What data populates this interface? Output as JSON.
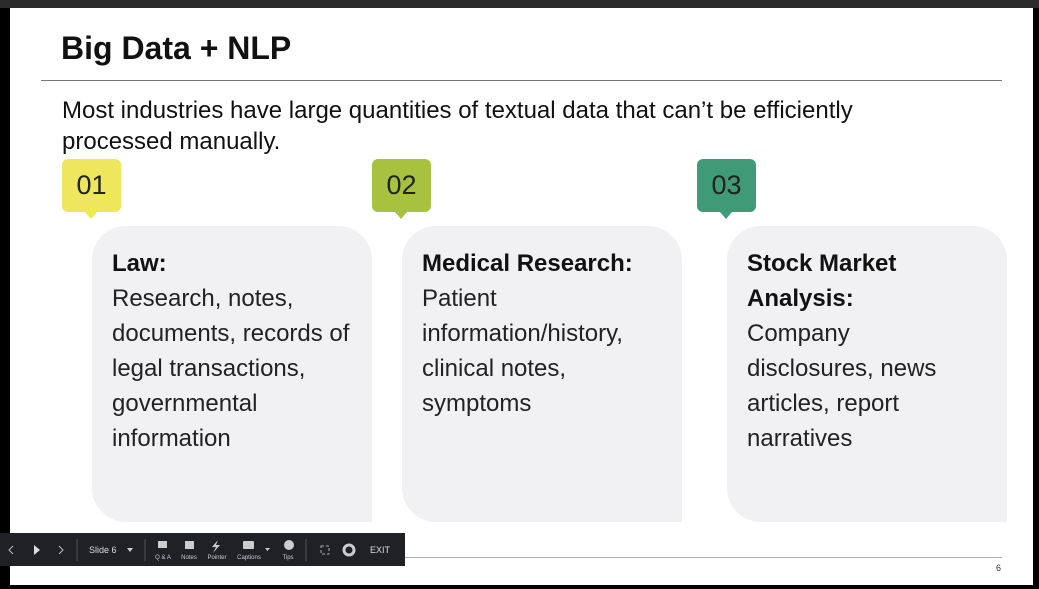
{
  "slide": {
    "title": "Big Data + NLP",
    "intro": "Most industries have large quantities of textual data that can’t be efficiently processed manually.",
    "cards": [
      {
        "number": "01",
        "heading": "Law:",
        "body": "Research, notes, documents, records of legal transactions, governmental information"
      },
      {
        "number": "02",
        "heading": "Medical Research:",
        "body": "Patient information/history, clinical notes, symptoms"
      },
      {
        "number": "03",
        "heading": "Stock Market Analysis:",
        "body": "Company disclosures, news articles, report narratives"
      }
    ],
    "page_number": "6"
  },
  "toolbar": {
    "slide": "Slide 6",
    "buttons": [
      "Q & A",
      "Notes",
      "Pointer",
      "Captions",
      "Tips"
    ],
    "exit": "EXIT"
  }
}
